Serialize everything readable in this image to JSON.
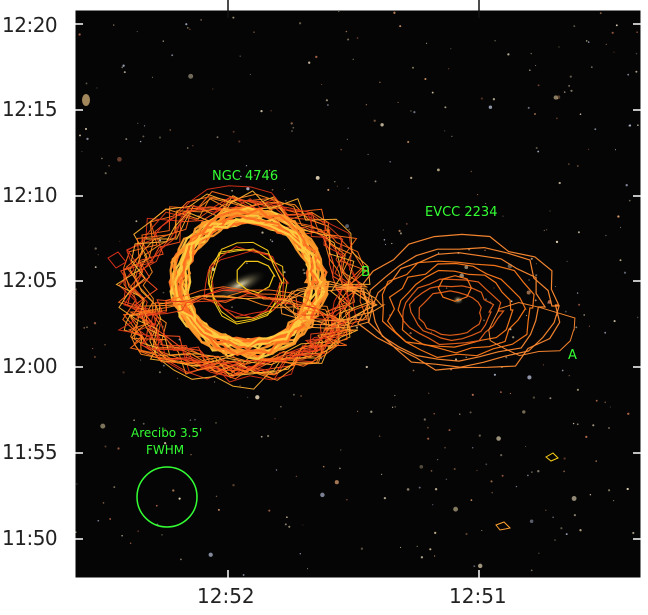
{
  "axes": {
    "y_ticks": [
      "12:20",
      "12:15",
      "12:10",
      "12:05",
      "12:00",
      "11:55",
      "11:50"
    ],
    "x_ticks": [
      "12:52",
      "12:51"
    ]
  },
  "annotations": {
    "ngc": "NGC 4746",
    "evcc": "EVCC 2234",
    "b": "B",
    "a": "A",
    "beam_line1": "Arecibo 3.5'",
    "beam_line2": "FWHM"
  },
  "colors": {
    "sky": "#050505",
    "label_green": "#33ff33",
    "contour_orange": "#ff7a1a",
    "contour_red": "#e0301a",
    "contour_yellow": "#ffd21a",
    "frame": "#ffffff"
  }
}
